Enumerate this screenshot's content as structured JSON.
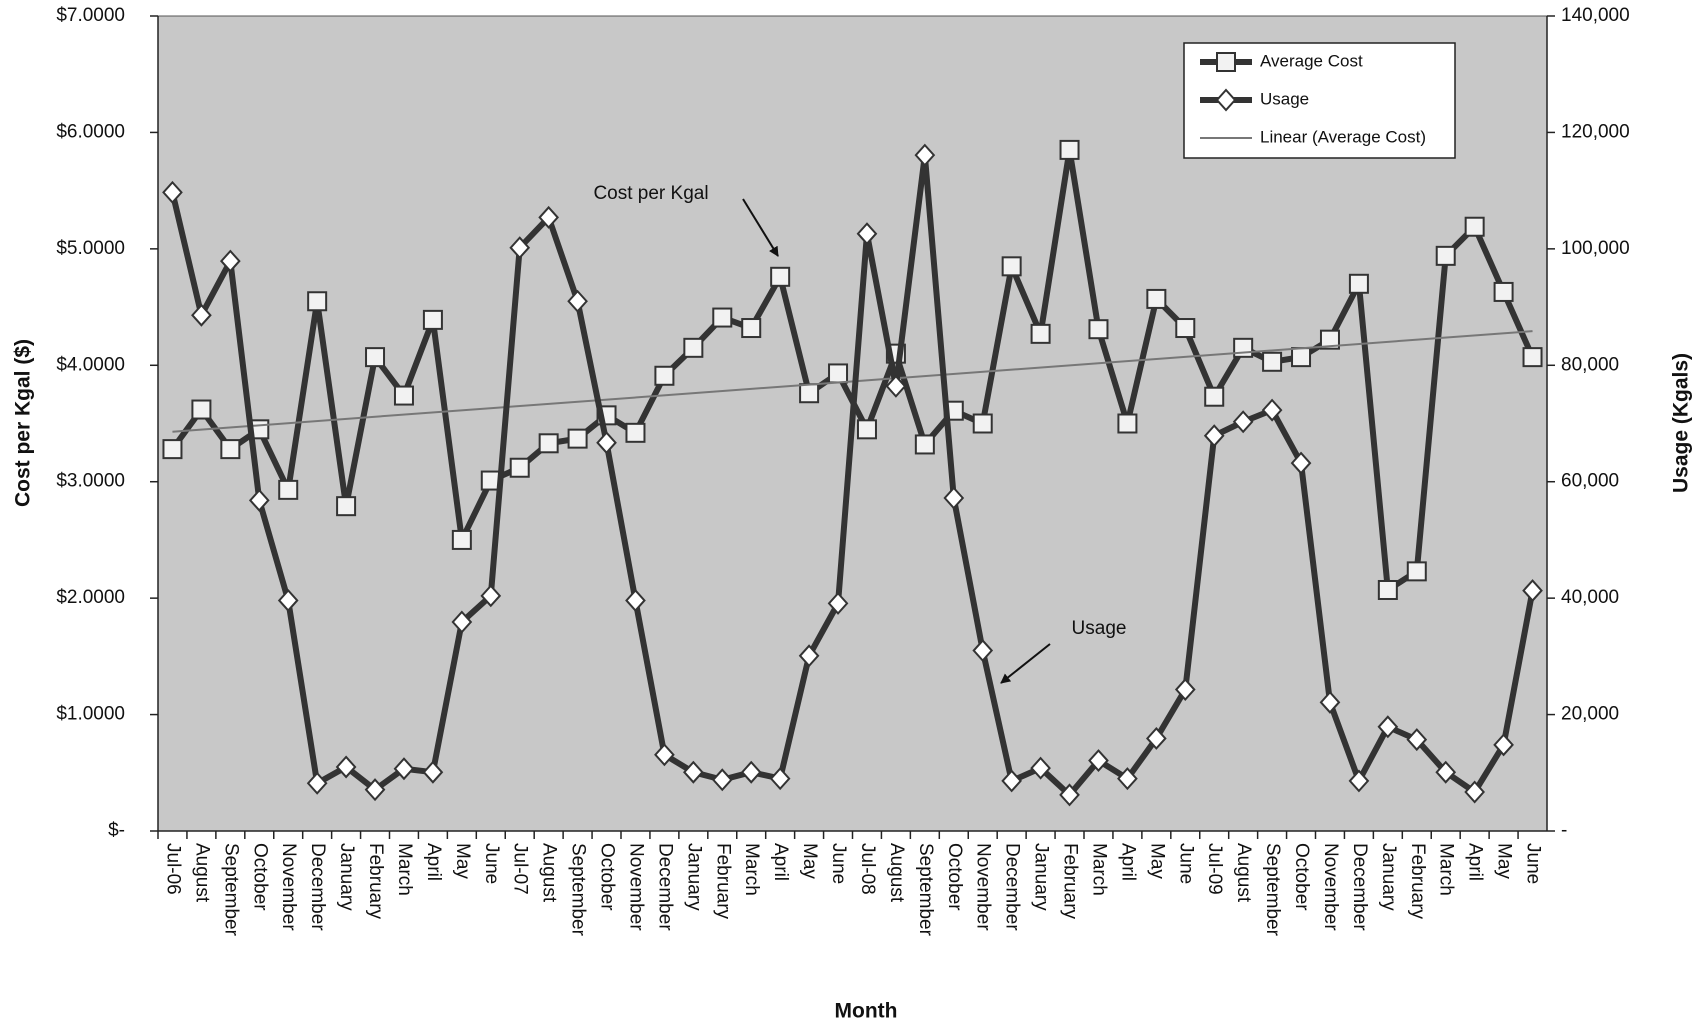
{
  "chart_data": {
    "type": "line",
    "x_label": "Month",
    "y_label": "Cost per Kgal ($)",
    "y2_label": "Usage (Kgals)",
    "categories": [
      "Jul-06",
      "August",
      "September",
      "October",
      "November",
      "December",
      "January",
      "February",
      "March",
      "April",
      "May",
      "June",
      "Jul-07",
      "August",
      "September",
      "October",
      "November",
      "December",
      "January",
      "February",
      "March",
      "April",
      "May",
      "June",
      "Jul-08",
      "August",
      "September",
      "October",
      "November",
      "December",
      "January",
      "February",
      "March",
      "April",
      "May",
      "June",
      "Jul-09",
      "August",
      "September",
      "October",
      "November",
      "December",
      "January",
      "February",
      "March",
      "April",
      "May",
      "June"
    ],
    "series": [
      {
        "name": "Average Cost",
        "color": "#333333",
        "marker": "square",
        "axis": "y",
        "values": [
          3.28,
          3.62,
          3.28,
          3.45,
          2.93,
          4.55,
          2.79,
          4.07,
          3.74,
          4.39,
          2.5,
          3.01,
          3.12,
          3.33,
          3.37,
          3.57,
          3.42,
          3.91,
          4.15,
          4.41,
          4.32,
          4.76,
          3.76,
          3.93,
          3.45,
          4.1,
          3.32,
          3.61,
          3.5,
          4.85,
          4.27,
          5.85,
          4.31,
          3.5,
          4.57,
          4.32,
          3.73,
          4.15,
          4.03,
          4.07,
          4.22,
          4.7,
          2.07,
          2.23,
          4.94,
          5.19,
          4.63,
          4.07
        ]
      },
      {
        "name": "Usage",
        "color": "#333333",
        "marker": "diamond",
        "axis": "y2",
        "values": [
          109700,
          88600,
          97900,
          56800,
          39600,
          8200,
          11000,
          7100,
          10700,
          10100,
          35900,
          40400,
          100200,
          105400,
          91000,
          66700,
          39600,
          13100,
          10100,
          8800,
          10100,
          9000,
          30100,
          39100,
          102600,
          76400,
          116100,
          57200,
          31000,
          8600,
          10800,
          6200,
          12100,
          9000,
          15900,
          24300,
          67900,
          70300,
          72300,
          63200,
          22100,
          8600,
          17900,
          15700,
          10100,
          6700,
          14800,
          41300
        ]
      }
    ],
    "trendline": {
      "name": "Linear (Average Cost)",
      "series": 0,
      "color": "#777777"
    },
    "ylim": [
      0,
      7
    ],
    "yticks": [
      {
        "value": 0,
        "label": "$-"
      },
      {
        "value": 1,
        "label": "$1.0000"
      },
      {
        "value": 2,
        "label": "$2.0000"
      },
      {
        "value": 3,
        "label": "$3.0000"
      },
      {
        "value": 4,
        "label": "$4.0000"
      },
      {
        "value": 5,
        "label": "$5.0000"
      },
      {
        "value": 6,
        "label": "$6.0000"
      },
      {
        "value": 7,
        "label": "$7.0000"
      }
    ],
    "y2lim": [
      0,
      140000
    ],
    "y2ticks": [
      {
        "value": 0,
        "label": "-"
      },
      {
        "value": 20000,
        "label": "20,000"
      },
      {
        "value": 40000,
        "label": "40,000"
      },
      {
        "value": 60000,
        "label": "60,000"
      },
      {
        "value": 80000,
        "label": "80,000"
      },
      {
        "value": 100000,
        "label": "100,000"
      },
      {
        "value": 120000,
        "label": "120,000"
      },
      {
        "value": 140000,
        "label": "140,000"
      }
    ],
    "legend_position": "upper right",
    "annotations": [
      {
        "text": "Cost per Kgal"
      },
      {
        "text": "Usage"
      }
    ]
  }
}
